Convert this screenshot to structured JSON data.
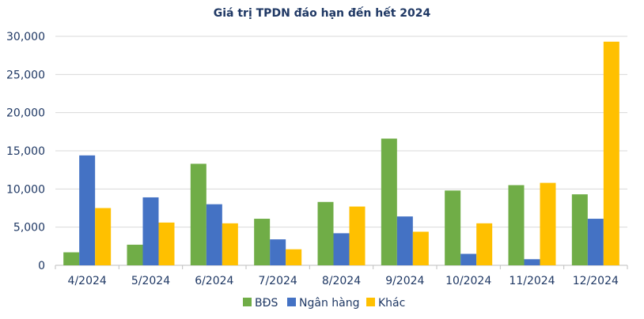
{
  "chart_data": {
    "type": "bar",
    "title": "Giá trị TPDN đáo hạn đến hết 2024",
    "categories": [
      "4/2024",
      "5/2024",
      "6/2024",
      "7/2024",
      "8/2024",
      "9/2024",
      "10/2024",
      "11/2024",
      "12/2024"
    ],
    "series": [
      {
        "name": "BĐS",
        "color": "#70ad47",
        "values": [
          1700,
          2700,
          13300,
          6100,
          8300,
          16600,
          9800,
          10500,
          9300
        ]
      },
      {
        "name": "Ngân hàng",
        "color": "#4472c4",
        "values": [
          14400,
          8900,
          8000,
          3400,
          4200,
          6400,
          1500,
          800,
          6100
        ]
      },
      {
        "name": "Khác",
        "color": "#ffc000",
        "values": [
          7500,
          5600,
          5500,
          2100,
          7700,
          4400,
          5500,
          10800,
          29300
        ]
      }
    ],
    "ylim": [
      0,
      30000
    ],
    "yticks": [
      "0",
      "5,000",
      "10,000",
      "15,000",
      "20,000",
      "25,000",
      "30,000"
    ],
    "xlabel": "",
    "ylabel": "",
    "grid": true,
    "legend": "bottom"
  }
}
